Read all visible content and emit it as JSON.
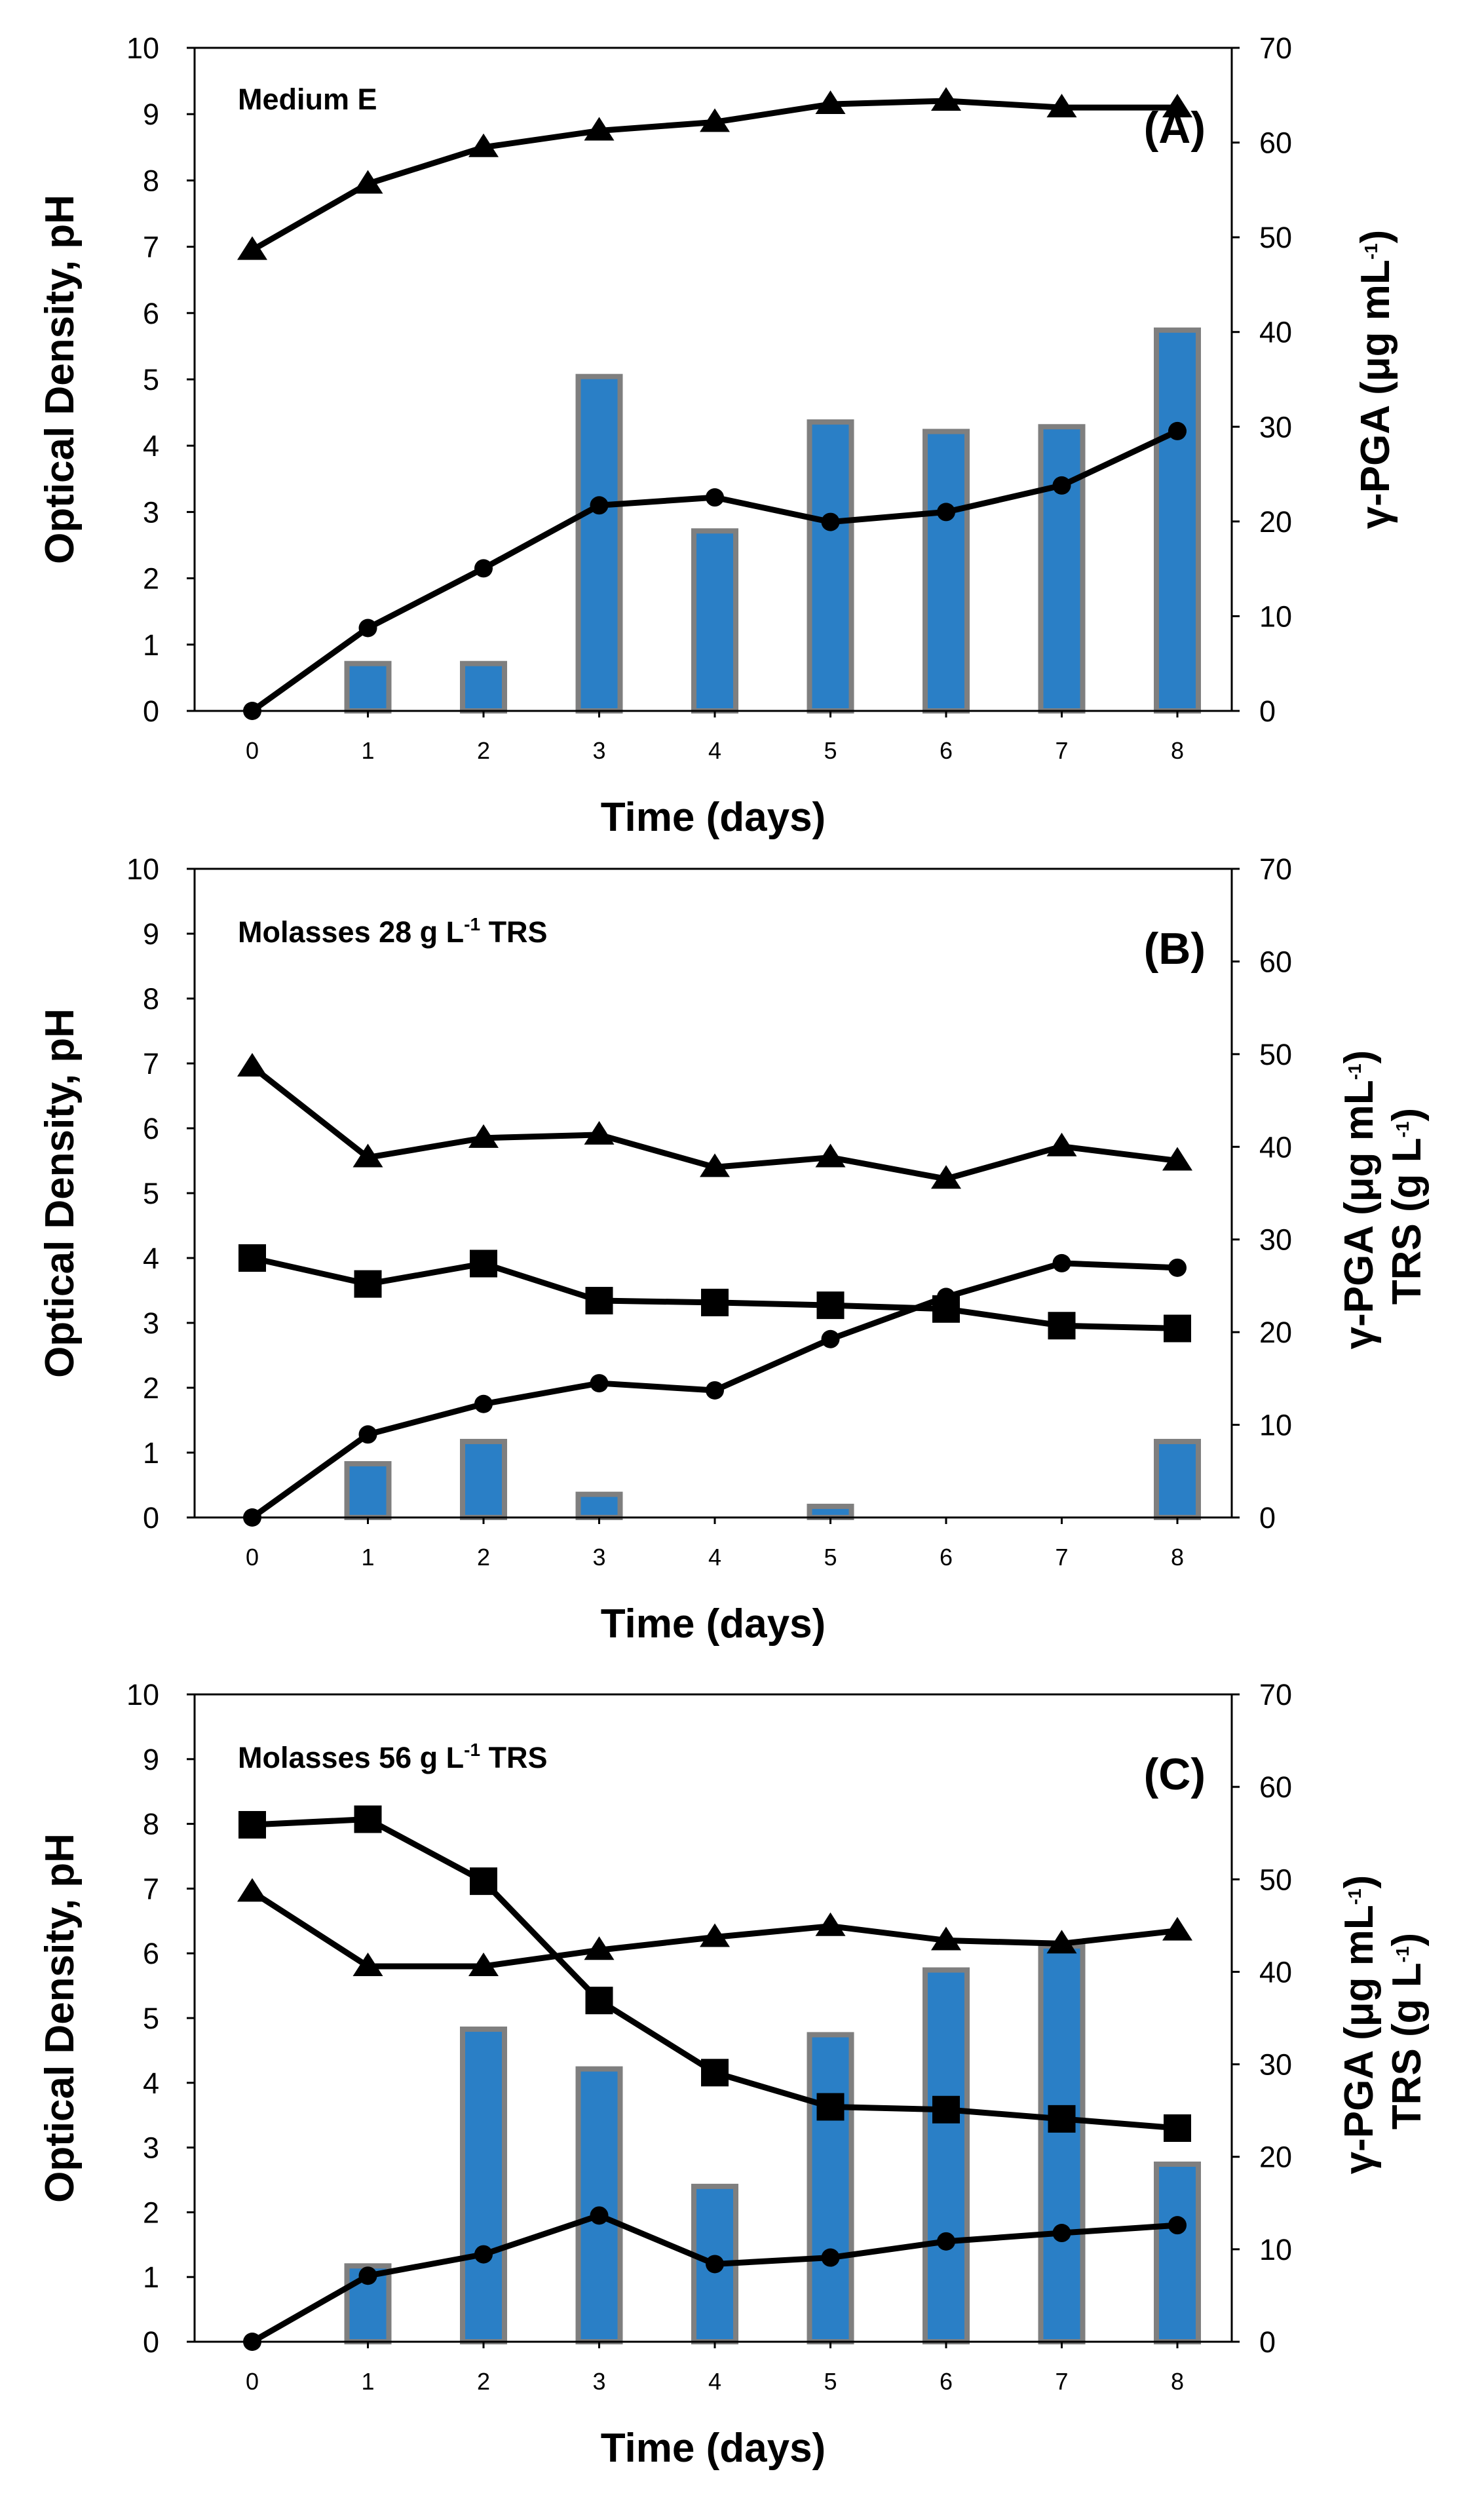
{
  "chart_data": [
    {
      "type": "bar+line",
      "panel_label": "(A)",
      "title": "Medium E",
      "xlabel": "Time (days)",
      "ylabel_left": "Optical Density, pH",
      "ylabel_right": [
        "γ-PGA (μg mL",
        "-1",
        ")"
      ],
      "x": [
        0,
        1,
        2,
        3,
        4,
        5,
        6,
        7,
        8
      ],
      "ylim_left": [
        0,
        10
      ],
      "ylim_right": [
        0,
        70
      ],
      "left_ticks": [
        "0",
        "1",
        "2",
        "3",
        "4",
        "5",
        "6",
        "7",
        "8",
        "9",
        "10"
      ],
      "right_ticks": [
        "0",
        "10",
        "20",
        "30",
        "40",
        "50",
        "60",
        "70"
      ],
      "bars": {
        "name": "γ-PGA",
        "axis": "right",
        "values": [
          null,
          5,
          5,
          35.3,
          19,
          30.5,
          29.5,
          30,
          40.2
        ]
      },
      "series": [
        {
          "name": "pH",
          "marker": "triangle",
          "axis": "left",
          "values": [
            6.95,
            7.95,
            8.5,
            8.75,
            8.88,
            9.15,
            9.2,
            9.1,
            9.1
          ]
        },
        {
          "name": "Optical Density",
          "marker": "circle",
          "axis": "left",
          "values": [
            0,
            1.25,
            2.15,
            3.1,
            3.22,
            2.85,
            3.0,
            3.4,
            4.22
          ]
        }
      ]
    },
    {
      "type": "bar+line",
      "panel_label": "(B)",
      "title": [
        "Molasses 28 g L",
        "-1",
        " TRS"
      ],
      "xlabel": "Time (days)",
      "ylabel_left": "Optical Density, pH",
      "ylabel_right": [
        "γ-PGA (μg mL",
        "-1",
        ")"
      ],
      "ylabel_right2": [
        "TRS (g L",
        "-1",
        ")"
      ],
      "x": [
        0,
        1,
        2,
        3,
        4,
        5,
        6,
        7,
        8
      ],
      "ylim_left": [
        0,
        10
      ],
      "ylim_right": [
        0,
        70
      ],
      "left_ticks": [
        "0",
        "1",
        "2",
        "3",
        "4",
        "5",
        "6",
        "7",
        "8",
        "9",
        "10"
      ],
      "right_ticks": [
        "0",
        "10",
        "20",
        "30",
        "40",
        "50",
        "60",
        "70"
      ],
      "bars": {
        "name": "γ-PGA",
        "axis": "right",
        "values": [
          null,
          5.8,
          8.2,
          2.5,
          null,
          1.2,
          null,
          null,
          8.2
        ]
      },
      "series": [
        {
          "name": "pH",
          "marker": "triangle",
          "axis": "left",
          "values": [
            6.95,
            5.55,
            5.85,
            5.9,
            5.4,
            5.55,
            5.22,
            5.72,
            5.5
          ]
        },
        {
          "name": "TRS",
          "marker": "square",
          "axis": "right",
          "values": [
            28,
            25.2,
            27.4,
            23.4,
            23.2,
            22.9,
            22.5,
            20.7,
            20.4
          ]
        },
        {
          "name": "Optical Density",
          "marker": "circle",
          "axis": "left",
          "values": [
            0,
            1.28,
            1.75,
            2.07,
            1.96,
            2.75,
            3.4,
            3.92,
            3.85
          ]
        }
      ]
    },
    {
      "type": "bar+line",
      "panel_label": "(C)",
      "title": [
        "Molasses 56 g L",
        "-1",
        " TRS"
      ],
      "xlabel": "Time (days)",
      "ylabel_left": "Optical Density, pH",
      "ylabel_right": [
        "γ-PGA (μg mL",
        "-1",
        ")"
      ],
      "ylabel_right2": [
        "TRS (g L",
        "-1",
        ")"
      ],
      "x": [
        0,
        1,
        2,
        3,
        4,
        5,
        6,
        7,
        8
      ],
      "ylim_left": [
        0,
        10
      ],
      "ylim_right": [
        0,
        70
      ],
      "left_ticks": [
        "0",
        "1",
        "2",
        "3",
        "4",
        "5",
        "6",
        "7",
        "8",
        "9",
        "10"
      ],
      "right_ticks": [
        "0",
        "10",
        "20",
        "30",
        "40",
        "50",
        "60",
        "70"
      ],
      "bars": {
        "name": "γ-PGA",
        "axis": "right",
        "values": [
          null,
          8.2,
          33.8,
          29.5,
          16.8,
          33.2,
          40.2,
          42.8,
          19.2
        ]
      },
      "series": [
        {
          "name": "pH",
          "marker": "triangle",
          "axis": "left",
          "values": [
            6.95,
            5.8,
            5.8,
            6.05,
            6.25,
            6.42,
            6.2,
            6.15,
            6.35
          ]
        },
        {
          "name": "TRS",
          "marker": "square",
          "axis": "right",
          "values": [
            55.9,
            56.5,
            49.8,
            36.9,
            29.1,
            25.4,
            25.1,
            24.1,
            23.1
          ]
        },
        {
          "name": "Optical Density",
          "marker": "circle",
          "axis": "left",
          "values": [
            0,
            1.02,
            1.35,
            1.95,
            1.2,
            1.3,
            1.55,
            1.68,
            1.8
          ]
        }
      ]
    }
  ],
  "colors": {
    "bar_fill": "#2a7fc6",
    "bar_border": "#7f7f7f",
    "line": "#000000",
    "axis": "#000000"
  }
}
